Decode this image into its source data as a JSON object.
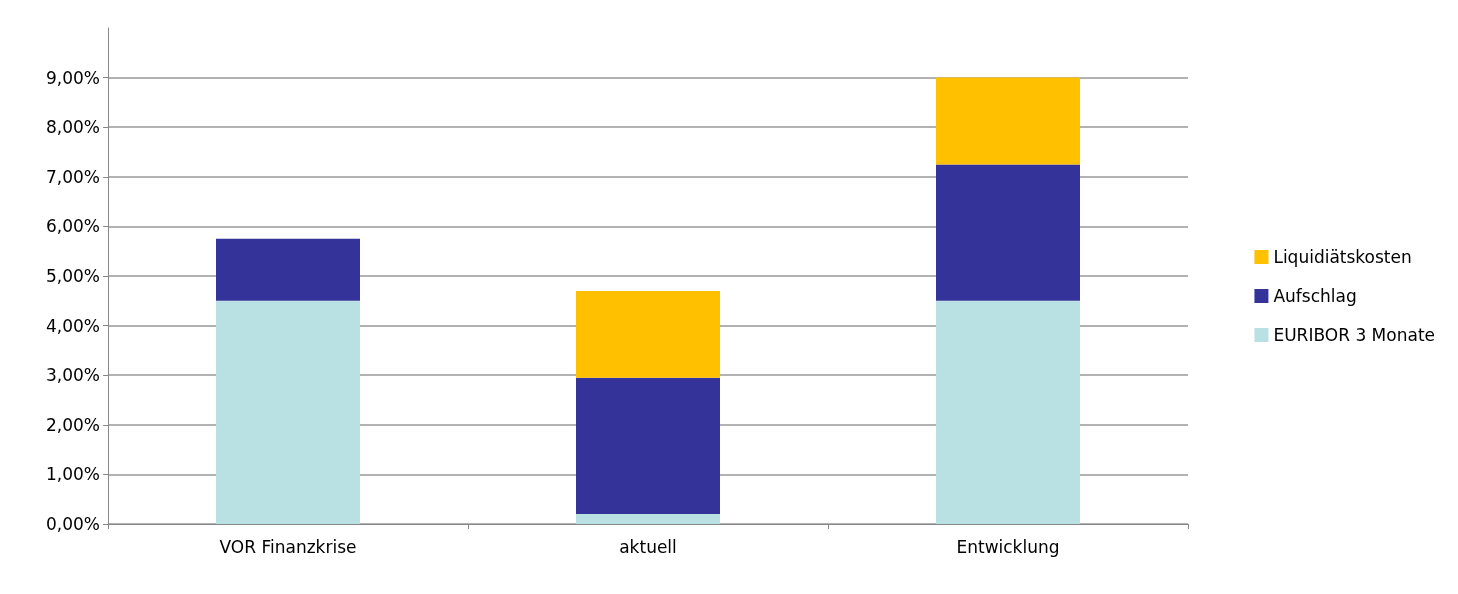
{
  "chart_data": {
    "type": "bar",
    "stacked": true,
    "categories": [
      "VOR Finanzkrise",
      "aktuell",
      "Entwicklung"
    ],
    "series": [
      {
        "name": "EURIBOR 3 Monate",
        "color": "#b9e0e2",
        "values": [
          4.5,
          0.2,
          4.5
        ]
      },
      {
        "name": "Aufschlag",
        "color": "#333399",
        "values": [
          1.25,
          2.75,
          2.75
        ]
      },
      {
        "name": "Liquidiätskosten",
        "color": "#ffc000",
        "values": [
          0,
          1.75,
          1.75
        ]
      }
    ],
    "ylim": [
      0,
      10
    ],
    "yticks": [
      {
        "value": 0,
        "label": "0,00%"
      },
      {
        "value": 1,
        "label": "1,00%"
      },
      {
        "value": 2,
        "label": "2,00%"
      },
      {
        "value": 3,
        "label": "3,00%"
      },
      {
        "value": 4,
        "label": "4,00%"
      },
      {
        "value": 5,
        "label": "5,00%"
      },
      {
        "value": 6,
        "label": "6,00%"
      },
      {
        "value": 7,
        "label": "7,00%"
      },
      {
        "value": 8,
        "label": "8,00%"
      },
      {
        "value": 9,
        "label": "9,00%"
      }
    ],
    "grid": "y",
    "legend": "right"
  }
}
